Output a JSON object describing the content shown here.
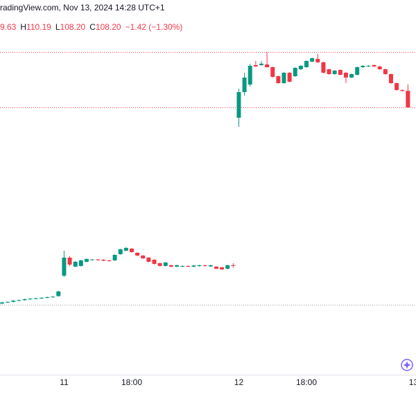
{
  "chart_data": {
    "type": "candlestick",
    "title": "radingView.com, Nov 13, 2024 14:28 UTC+1",
    "ohlc_header": [
      {
        "text": "9.63"
      },
      {
        "key": "H",
        "text": "110.19"
      },
      {
        "key": "L",
        "text": "108.20"
      },
      {
        "key": "C",
        "text": "108.20"
      },
      {
        "text": "−1.42 (−1.30%)"
      }
    ],
    "categories": [
      null,
      null,
      null,
      null,
      null,
      null,
      null,
      null,
      null,
      null,
      null,
      "11",
      null,
      null,
      null,
      null,
      null,
      null,
      null,
      null,
      null,
      null,
      null,
      "18:00",
      null,
      null,
      null,
      null,
      null,
      null,
      null,
      null,
      null,
      null,
      null,
      null,
      null,
      null,
      null,
      null,
      null,
      null,
      "12",
      null,
      null,
      null,
      null,
      null,
      null,
      null,
      null,
      null,
      null,
      null,
      "18:00",
      null,
      null,
      null,
      null,
      null,
      null,
      null,
      null,
      null,
      null,
      null,
      null,
      null,
      null,
      null,
      null,
      null,
      null,
      "13"
    ],
    "open": [
      91.2,
      91.3,
      91.35,
      91.45,
      91.5,
      91.58,
      91.62,
      91.66,
      91.7,
      91.76,
      91.85,
      93.62,
      95.18,
      94.4,
      94.46,
      94.82,
      95.0,
      95.02,
      95.0,
      94.94,
      94.94,
      95.48,
      95.78,
      95.96,
      95.6,
      95.36,
      95.18,
      95.0,
      94.7,
      94.46,
      94.52,
      94.4,
      94.4,
      94.46,
      94.4,
      94.45,
      94.52,
      94.42,
      94.4,
      94.34,
      94.22,
      94.52,
      107.3,
      109.52,
      110.18,
      111.86,
      111.86,
      111.92,
      111.68,
      110.9,
      110.3,
      111.2,
      110.9,
      111.5,
      111.68,
      112.16,
      112.4,
      112.1,
      111.5,
      111.08,
      111.44,
      111.2,
      110.78,
      111.02,
      111.68,
      111.74,
      111.86,
      111.74,
      111.5,
      111.08,
      110.3,
      109.7,
      109.63,
      null
    ],
    "high": [
      91.35,
      91.4,
      91.5,
      91.55,
      91.63,
      91.67,
      91.71,
      91.75,
      91.81,
      91.85,
      92.3,
      95.78,
      95.3,
      94.9,
      95.0,
      95.11,
      95.07,
      95.07,
      95.05,
      94.99,
      95.47,
      95.95,
      96.1,
      96.01,
      95.65,
      95.41,
      95.23,
      95.05,
      94.75,
      94.81,
      94.57,
      94.57,
      94.51,
      94.51,
      94.55,
      94.57,
      94.57,
      94.57,
      94.45,
      94.39,
      94.57,
      94.7,
      109.82,
      111.2,
      111.98,
      112.22,
      112.2,
      113.0,
      111.73,
      110.95,
      111.25,
      111.25,
      111.67,
      111.85,
      112.27,
      112.51,
      112.82,
      112.15,
      111.55,
      111.43,
      111.49,
      111.25,
      111.13,
      111.73,
      111.85,
      111.85,
      111.91,
      111.79,
      111.55,
      111.13,
      110.35,
      109.75,
      110.19,
      null
    ],
    "low": [
      91.15,
      91.25,
      91.3,
      91.4,
      91.45,
      91.53,
      91.57,
      91.61,
      91.65,
      91.71,
      91.8,
      93.5,
      94.46,
      94.35,
      94.4,
      94.77,
      94.95,
      94.93,
      94.87,
      94.85,
      94.89,
      95.43,
      95.73,
      95.61,
      95.31,
      95.07,
      94.77,
      94.59,
      94.41,
      94.41,
      94.35,
      94.35,
      94.35,
      94.35,
      94.35,
      94.4,
      94.41,
      94.37,
      94.17,
      94.11,
      94.17,
      94.3,
      106.52,
      109.22,
      110.0,
      111.69,
      111.81,
      111.63,
      110.79,
      110.25,
      110.25,
      110.37,
      110.85,
      111.45,
      111.63,
      112.11,
      112.05,
      111.15,
      111.03,
      111.03,
      110.97,
      110.3,
      110.73,
      110.97,
      111.63,
      111.69,
      111.69,
      111.45,
      111.03,
      110.25,
      109.65,
      109.57,
      108.2,
      null
    ],
    "close": [
      91.3,
      91.35,
      91.45,
      91.5,
      91.58,
      91.62,
      91.66,
      91.7,
      91.76,
      91.8,
      92.25,
      95.18,
      94.58,
      94.82,
      94.94,
      95.06,
      95.02,
      94.98,
      94.92,
      94.9,
      95.42,
      95.9,
      96.02,
      95.66,
      95.36,
      95.12,
      94.82,
      94.64,
      94.46,
      94.76,
      94.4,
      94.52,
      94.46,
      94.4,
      94.5,
      94.52,
      94.46,
      94.52,
      94.22,
      94.16,
      94.52,
      94.48,
      109.52,
      110.78,
      111.8,
      111.74,
      111.98,
      111.68,
      110.84,
      110.3,
      111.2,
      110.42,
      111.62,
      111.8,
      112.22,
      112.46,
      112.1,
      111.2,
      111.08,
      111.38,
      111.02,
      110.78,
      111.08,
      111.68,
      111.8,
      111.8,
      111.74,
      111.5,
      111.08,
      110.3,
      109.7,
      109.62,
      108.2,
      null
    ],
    "up_color": "#089981",
    "down_color": "#f23645",
    "price_lines": [
      {
        "value": 113.0,
        "color": "#f23645"
      },
      {
        "value": 108.2,
        "color": "#f23645"
      },
      {
        "value": 91.1,
        "color": "#9598a1"
      }
    ],
    "ylim": [
      85.1,
      117.5
    ]
  }
}
